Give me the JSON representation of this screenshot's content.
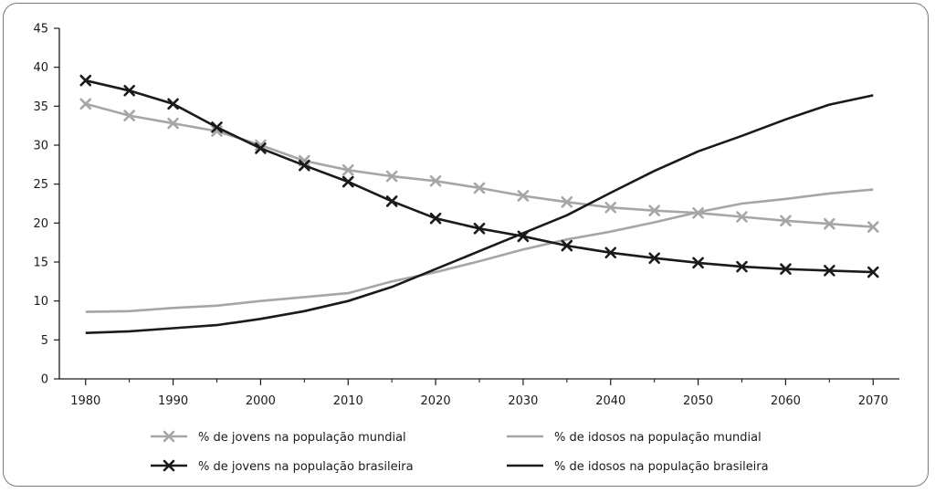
{
  "chart_data": {
    "type": "line",
    "title": "",
    "xlabel": "",
    "ylabel": "",
    "xlim": [
      1977,
      2073
    ],
    "ylim": [
      0,
      45
    ],
    "x_ticks": [
      "1980",
      "1990",
      "2000",
      "2010",
      "2020",
      "2030",
      "2040",
      "2050",
      "2060",
      "2070"
    ],
    "y_ticks": [
      "0",
      "5",
      "10",
      "15",
      "20",
      "25",
      "30",
      "35",
      "40",
      "45"
    ],
    "grid": false,
    "legend_position": "bottom",
    "series": [
      {
        "name": "% de jovens na população mundial",
        "color": "#a6a6a6",
        "marker": "x",
        "x": [
          1980,
          1985,
          1990,
          1995,
          2000,
          2005,
          2010,
          2015,
          2020,
          2025,
          2030,
          2035,
          2040,
          2045,
          2050,
          2055,
          2060,
          2065,
          2070
        ],
        "y": [
          35.3,
          33.8,
          32.8,
          31.8,
          30.0,
          28.0,
          26.8,
          26.0,
          25.4,
          24.5,
          23.5,
          22.7,
          22.0,
          21.6,
          21.3,
          20.8,
          20.3,
          19.9,
          19.5
        ]
      },
      {
        "name": "% de idosos na população mundial",
        "color": "#a6a6a6",
        "marker": "none",
        "x": [
          1980,
          1985,
          1990,
          1995,
          2000,
          2005,
          2010,
          2015,
          2020,
          2025,
          2030,
          2035,
          2040,
          2045,
          2050,
          2055,
          2060,
          2065,
          2070
        ],
        "y": [
          8.6,
          8.7,
          9.1,
          9.4,
          10.0,
          10.5,
          11.0,
          12.5,
          13.7,
          15.1,
          16.6,
          17.9,
          18.9,
          20.1,
          21.4,
          22.5,
          23.1,
          23.8,
          24.3
        ]
      },
      {
        "name": "% de jovens na população brasileira",
        "color": "#1a1a1a",
        "marker": "x",
        "x": [
          1980,
          1985,
          1990,
          1995,
          2000,
          2005,
          2010,
          2015,
          2020,
          2025,
          2030,
          2035,
          2040,
          2045,
          2050,
          2055,
          2060,
          2065,
          2070
        ],
        "y": [
          38.3,
          37.0,
          35.3,
          32.3,
          29.6,
          27.4,
          25.3,
          22.8,
          20.6,
          19.3,
          18.3,
          17.1,
          16.2,
          15.5,
          14.9,
          14.4,
          14.1,
          13.9,
          13.7
        ]
      },
      {
        "name": "% de idosos na população brasileira",
        "color": "#1a1a1a",
        "marker": "none",
        "x": [
          1980,
          1985,
          1990,
          1995,
          2000,
          2005,
          2010,
          2015,
          2020,
          2025,
          2030,
          2035,
          2040,
          2045,
          2050,
          2055,
          2060,
          2065,
          2070
        ],
        "y": [
          5.9,
          6.1,
          6.5,
          6.9,
          7.7,
          8.7,
          10.0,
          11.8,
          14.1,
          16.4,
          18.7,
          21.0,
          23.9,
          26.7,
          29.2,
          31.2,
          33.3,
          35.2,
          36.4
        ]
      }
    ]
  }
}
